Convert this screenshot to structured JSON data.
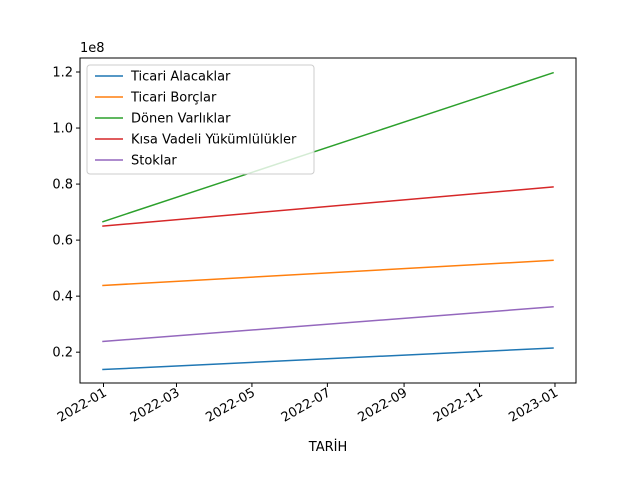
{
  "chart_data": {
    "type": "line",
    "title": "",
    "xlabel": "TARİH",
    "ylabel": "",
    "y_offset_label": "1e8",
    "x_ticks": [
      "2022-01",
      "2022-03",
      "2022-05",
      "2022-07",
      "2022-09",
      "2022-11",
      "2023-01"
    ],
    "y_ticks": [
      "0.2",
      "0.4",
      "0.6",
      "0.8",
      "1.0",
      "1.2"
    ],
    "x": [
      "2021-12-31",
      "2022-12-31"
    ],
    "xlim": [
      "2021-12-13",
      "2023-01-18"
    ],
    "ylim": [
      9000000,
      125000000
    ],
    "y_tick_values": [
      20000000,
      40000000,
      60000000,
      80000000,
      100000000,
      120000000
    ],
    "grid": false,
    "legend_position": "upper-left",
    "series": [
      {
        "name": "Ticari Alacaklar",
        "color": "#1f77b4",
        "values": [
          13800000,
          21500000
        ]
      },
      {
        "name": "Ticari Borçlar",
        "color": "#ff7f0e",
        "values": [
          43800000,
          52800000
        ]
      },
      {
        "name": "Dönen Varlıklar",
        "color": "#2ca02c",
        "values": [
          66500000,
          119800000
        ]
      },
      {
        "name": "Kısa Vadeli Yükümlülükler",
        "color": "#d62728",
        "values": [
          65000000,
          79000000
        ]
      },
      {
        "name": "Stoklar",
        "color": "#9467bd",
        "values": [
          23800000,
          36200000
        ]
      }
    ]
  }
}
